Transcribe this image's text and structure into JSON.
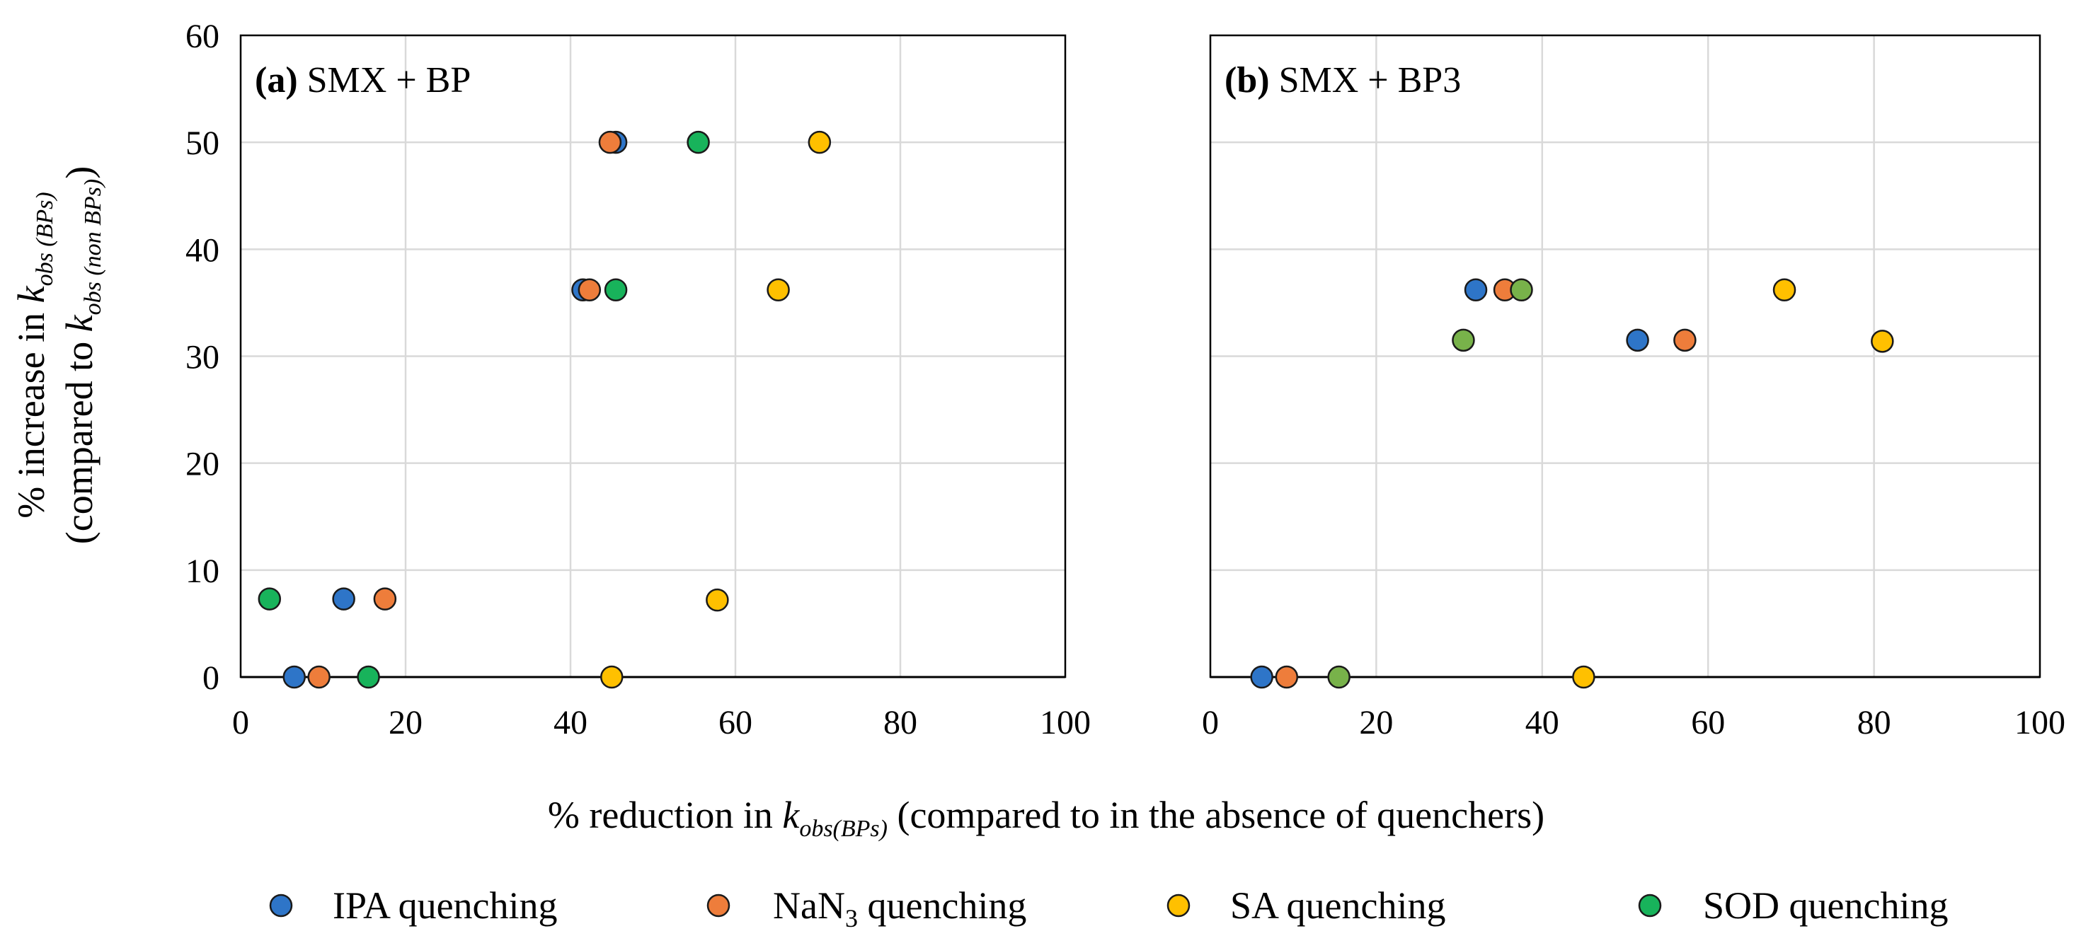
{
  "colors": {
    "IPA": "#2e75c8",
    "NaN3": "#ee7d3b",
    "SA": "#ffc000",
    "SOD": "#18b35b",
    "SOD_b": "#78b24a"
  },
  "yaxis": {
    "line1_pre": "% increase in ",
    "line1_k": "k",
    "line1_sub": "obs (BPs)",
    "line2_pre": "(compared to ",
    "line2_k": "k",
    "line2_sub": "obs (non BPs)",
    "line2_post": ")"
  },
  "xaxis": {
    "pre": "% reduction in ",
    "k": "k",
    "sub": "obs(BPs)",
    "post": " (compared to in the absence of quenchers)"
  },
  "legend": [
    {
      "label_pre": "IPA quenching",
      "label_sub": "",
      "label_post": "",
      "color_key": "IPA"
    },
    {
      "label_pre": "NaN",
      "label_sub": "3",
      "label_post": " quenching",
      "color_key": "NaN3"
    },
    {
      "label_pre": "SA quenching",
      "label_sub": "",
      "label_post": "",
      "color_key": "SA"
    },
    {
      "label_pre": "SOD quenching",
      "label_sub": "",
      "label_post": "",
      "color_key": "SOD"
    }
  ],
  "chart_data": [
    {
      "type": "scatter",
      "title_tag": "(a)",
      "title_text": " SMX + BP",
      "xlim": [
        0,
        100
      ],
      "ylim": [
        0,
        60
      ],
      "xticks": [
        0,
        20,
        40,
        60,
        80,
        100
      ],
      "yticks": [
        0,
        10,
        20,
        30,
        40,
        50,
        60
      ],
      "grid": true,
      "series": [
        {
          "name": "IPA quenching",
          "color_key": "IPA",
          "points": [
            [
              6.5,
              0
            ],
            [
              12.5,
              7.3
            ],
            [
              41.5,
              36.2
            ],
            [
              45.5,
              50
            ]
          ]
        },
        {
          "name": "NaN3 quenching",
          "color_key": "NaN3",
          "points": [
            [
              9.5,
              0
            ],
            [
              17.5,
              7.3
            ],
            [
              42.3,
              36.2
            ],
            [
              44.8,
              50
            ]
          ]
        },
        {
          "name": "SA quenching",
          "color_key": "SA",
          "points": [
            [
              45.0,
              0
            ],
            [
              57.8,
              7.2
            ],
            [
              65.2,
              36.2
            ],
            [
              70.2,
              50
            ]
          ]
        },
        {
          "name": "SOD quenching",
          "color_key": "SOD",
          "points": [
            [
              3.5,
              7.3
            ],
            [
              15.5,
              0
            ],
            [
              45.5,
              36.2
            ],
            [
              55.5,
              50
            ]
          ]
        }
      ]
    },
    {
      "type": "scatter",
      "title_tag": "(b)",
      "title_text": " SMX + BP3",
      "xlim": [
        0,
        100
      ],
      "ylim": [
        0,
        60
      ],
      "xticks": [
        0,
        20,
        40,
        60,
        80,
        100
      ],
      "yticks": [
        0,
        10,
        20,
        30,
        40,
        50,
        60
      ],
      "grid": true,
      "series": [
        {
          "name": "IPA quenching",
          "color_key": "IPA",
          "points": [
            [
              6.2,
              0
            ],
            [
              32.0,
              36.2
            ],
            [
              51.5,
              31.5
            ]
          ]
        },
        {
          "name": "NaN3 quenching",
          "color_key": "NaN3",
          "points": [
            [
              9.2,
              0
            ],
            [
              35.5,
              36.2
            ],
            [
              57.2,
              31.5
            ]
          ]
        },
        {
          "name": "SA quenching",
          "color_key": "SA",
          "points": [
            [
              45.0,
              0
            ],
            [
              69.2,
              36.2
            ],
            [
              81.0,
              31.4
            ]
          ]
        },
        {
          "name": "SOD quenching",
          "color_key": "SOD_b",
          "points": [
            [
              15.5,
              0
            ],
            [
              30.5,
              31.5
            ],
            [
              37.5,
              36.2
            ]
          ]
        }
      ]
    }
  ]
}
